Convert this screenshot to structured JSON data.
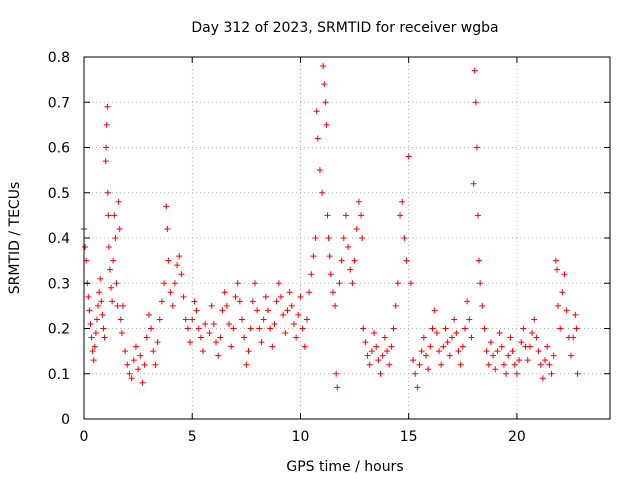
{
  "chart_data": {
    "type": "scatter",
    "title": "Day 312 of 2023, SRMTID for receiver wgba",
    "xlabel": "GPS time / hours",
    "ylabel": "SRMTID / TECUs",
    "xlim": [
      0,
      24.3
    ],
    "ylim": [
      0,
      0.8
    ],
    "xticks": [
      0,
      5,
      10,
      15,
      20
    ],
    "yticks": [
      0,
      0.1,
      0.2,
      0.3,
      0.4,
      0.5,
      0.6,
      0.7,
      0.8
    ],
    "xtick_labels": [
      "0",
      "5",
      "10",
      "15",
      "20"
    ],
    "ytick_labels": [
      "0",
      "0.1",
      "0.2",
      "0.3",
      "0.4",
      "0.5",
      "0.6",
      "0.7",
      "0.8"
    ],
    "grid": true,
    "marker": "+",
    "color": "#ff0000",
    "series": [
      {
        "name": "SRMTID",
        "points": [
          [
            0.0,
            0.42
          ],
          [
            0.05,
            0.38
          ],
          [
            0.1,
            0.35
          ],
          [
            0.15,
            0.3
          ],
          [
            0.2,
            0.27
          ],
          [
            0.25,
            0.24
          ],
          [
            0.3,
            0.21
          ],
          [
            0.35,
            0.18
          ],
          [
            0.4,
            0.15
          ],
          [
            0.45,
            0.13
          ],
          [
            0.5,
            0.16
          ],
          [
            0.55,
            0.19
          ],
          [
            0.6,
            0.22
          ],
          [
            0.65,
            0.25
          ],
          [
            0.7,
            0.28
          ],
          [
            0.75,
            0.31
          ],
          [
            0.8,
            0.26
          ],
          [
            0.85,
            0.23
          ],
          [
            0.9,
            0.2
          ],
          [
            0.95,
            0.18
          ],
          [
            1.0,
            0.57
          ],
          [
            1.02,
            0.6
          ],
          [
            1.05,
            0.65
          ],
          [
            1.08,
            0.69
          ],
          [
            1.1,
            0.5
          ],
          [
            1.12,
            0.45
          ],
          [
            1.15,
            0.38
          ],
          [
            1.2,
            0.33
          ],
          [
            1.25,
            0.29
          ],
          [
            1.3,
            0.26
          ],
          [
            1.35,
            0.35
          ],
          [
            1.4,
            0.45
          ],
          [
            1.45,
            0.4
          ],
          [
            1.5,
            0.3
          ],
          [
            1.55,
            0.25
          ],
          [
            1.6,
            0.48
          ],
          [
            1.65,
            0.42
          ],
          [
            1.7,
            0.22
          ],
          [
            1.75,
            0.19
          ],
          [
            1.8,
            0.25
          ],
          [
            1.9,
            0.15
          ],
          [
            2.0,
            0.12
          ],
          [
            2.1,
            0.1
          ],
          [
            2.2,
            0.09
          ],
          [
            2.3,
            0.13
          ],
          [
            2.4,
            0.16
          ],
          [
            2.5,
            0.11
          ],
          [
            2.6,
            0.14
          ],
          [
            2.7,
            0.08
          ],
          [
            2.8,
            0.12
          ],
          [
            2.9,
            0.18
          ],
          [
            3.0,
            0.23
          ],
          [
            3.1,
            0.2
          ],
          [
            3.2,
            0.15
          ],
          [
            3.3,
            0.12
          ],
          [
            3.4,
            0.17
          ],
          [
            3.5,
            0.22
          ],
          [
            3.6,
            0.26
          ],
          [
            3.7,
            0.3
          ],
          [
            3.8,
            0.47
          ],
          [
            3.85,
            0.42
          ],
          [
            3.9,
            0.35
          ],
          [
            4.0,
            0.28
          ],
          [
            4.1,
            0.25
          ],
          [
            4.2,
            0.3
          ],
          [
            4.3,
            0.34
          ],
          [
            4.4,
            0.36
          ],
          [
            4.5,
            0.32
          ],
          [
            4.6,
            0.27
          ],
          [
            4.7,
            0.22
          ],
          [
            4.8,
            0.2
          ],
          [
            4.9,
            0.17
          ],
          [
            5.0,
            0.22
          ],
          [
            5.1,
            0.26
          ],
          [
            5.2,
            0.24
          ],
          [
            5.3,
            0.2
          ],
          [
            5.4,
            0.18
          ],
          [
            5.5,
            0.15
          ],
          [
            5.6,
            0.21
          ],
          [
            5.8,
            0.19
          ],
          [
            5.9,
            0.25
          ],
          [
            6.0,
            0.21
          ],
          [
            6.1,
            0.17
          ],
          [
            6.2,
            0.14
          ],
          [
            6.3,
            0.18
          ],
          [
            6.4,
            0.24
          ],
          [
            6.5,
            0.28
          ],
          [
            6.6,
            0.25
          ],
          [
            6.7,
            0.21
          ],
          [
            6.8,
            0.16
          ],
          [
            6.9,
            0.2
          ],
          [
            7.0,
            0.27
          ],
          [
            7.1,
            0.3
          ],
          [
            7.2,
            0.26
          ],
          [
            7.3,
            0.22
          ],
          [
            7.4,
            0.18
          ],
          [
            7.5,
            0.12
          ],
          [
            7.6,
            0.15
          ],
          [
            7.7,
            0.2
          ],
          [
            7.8,
            0.26
          ],
          [
            7.9,
            0.3
          ],
          [
            8.0,
            0.24
          ],
          [
            8.1,
            0.2
          ],
          [
            8.2,
            0.17
          ],
          [
            8.3,
            0.22
          ],
          [
            8.4,
            0.27
          ],
          [
            8.5,
            0.24
          ],
          [
            8.6,
            0.2
          ],
          [
            8.7,
            0.16
          ],
          [
            8.8,
            0.21
          ],
          [
            8.9,
            0.26
          ],
          [
            9.0,
            0.3
          ],
          [
            9.1,
            0.27
          ],
          [
            9.2,
            0.23
          ],
          [
            9.3,
            0.19
          ],
          [
            9.4,
            0.24
          ],
          [
            9.5,
            0.28
          ],
          [
            9.6,
            0.25
          ],
          [
            9.7,
            0.21
          ],
          [
            9.8,
            0.18
          ],
          [
            9.9,
            0.23
          ],
          [
            10.0,
            0.27
          ],
          [
            10.1,
            0.2
          ],
          [
            10.2,
            0.16
          ],
          [
            10.3,
            0.22
          ],
          [
            10.4,
            0.28
          ],
          [
            10.5,
            0.32
          ],
          [
            10.6,
            0.36
          ],
          [
            10.7,
            0.4
          ],
          [
            10.75,
            0.68
          ],
          [
            10.8,
            0.62
          ],
          [
            10.9,
            0.55
          ],
          [
            11.0,
            0.5
          ],
          [
            11.05,
            0.78
          ],
          [
            11.1,
            0.74
          ],
          [
            11.15,
            0.7
          ],
          [
            11.2,
            0.65
          ],
          [
            11.25,
            0.45
          ],
          [
            11.3,
            0.4
          ],
          [
            11.35,
            0.36
          ],
          [
            11.4,
            0.32
          ],
          [
            11.5,
            0.28
          ],
          [
            11.6,
            0.25
          ],
          [
            11.65,
            0.1
          ],
          [
            11.7,
            0.07
          ],
          [
            11.8,
            0.3
          ],
          [
            11.9,
            0.35
          ],
          [
            12.0,
            0.4
          ],
          [
            12.1,
            0.45
          ],
          [
            12.2,
            0.38
          ],
          [
            12.3,
            0.33
          ],
          [
            12.4,
            0.3
          ],
          [
            12.5,
            0.35
          ],
          [
            12.6,
            0.42
          ],
          [
            12.7,
            0.48
          ],
          [
            12.8,
            0.45
          ],
          [
            12.85,
            0.4
          ],
          [
            12.9,
            0.2
          ],
          [
            13.0,
            0.17
          ],
          [
            13.1,
            0.14
          ],
          [
            13.2,
            0.12
          ],
          [
            13.3,
            0.15
          ],
          [
            13.4,
            0.19
          ],
          [
            13.5,
            0.16
          ],
          [
            13.6,
            0.13
          ],
          [
            13.7,
            0.1
          ],
          [
            13.8,
            0.14
          ],
          [
            13.9,
            0.18
          ],
          [
            14.0,
            0.15
          ],
          [
            14.1,
            0.12
          ],
          [
            14.2,
            0.16
          ],
          [
            14.3,
            0.2
          ],
          [
            14.4,
            0.25
          ],
          [
            14.5,
            0.3
          ],
          [
            14.6,
            0.45
          ],
          [
            14.7,
            0.48
          ],
          [
            14.8,
            0.4
          ],
          [
            14.9,
            0.35
          ],
          [
            15.0,
            0.58
          ],
          [
            15.1,
            0.3
          ],
          [
            15.2,
            0.13
          ],
          [
            15.3,
            0.1
          ],
          [
            15.4,
            0.07
          ],
          [
            15.5,
            0.12
          ],
          [
            15.6,
            0.15
          ],
          [
            15.7,
            0.18
          ],
          [
            15.8,
            0.14
          ],
          [
            15.9,
            0.11
          ],
          [
            16.0,
            0.16
          ],
          [
            16.1,
            0.2
          ],
          [
            16.2,
            0.24
          ],
          [
            16.3,
            0.19
          ],
          [
            16.4,
            0.15
          ],
          [
            16.5,
            0.12
          ],
          [
            16.6,
            0.16
          ],
          [
            16.7,
            0.2
          ],
          [
            16.8,
            0.17
          ],
          [
            16.9,
            0.14
          ],
          [
            17.0,
            0.18
          ],
          [
            17.1,
            0.22
          ],
          [
            17.2,
            0.19
          ],
          [
            17.3,
            0.15
          ],
          [
            17.4,
            0.12
          ],
          [
            17.5,
            0.16
          ],
          [
            17.6,
            0.2
          ],
          [
            17.7,
            0.26
          ],
          [
            17.8,
            0.22
          ],
          [
            17.9,
            0.18
          ],
          [
            18.0,
            0.52
          ],
          [
            18.05,
            0.77
          ],
          [
            18.1,
            0.7
          ],
          [
            18.15,
            0.6
          ],
          [
            18.2,
            0.45
          ],
          [
            18.25,
            0.35
          ],
          [
            18.3,
            0.3
          ],
          [
            18.4,
            0.25
          ],
          [
            18.5,
            0.2
          ],
          [
            18.6,
            0.15
          ],
          [
            18.7,
            0.12
          ],
          [
            18.8,
            0.17
          ],
          [
            18.9,
            0.14
          ],
          [
            19.0,
            0.11
          ],
          [
            19.1,
            0.15
          ],
          [
            19.2,
            0.19
          ],
          [
            19.3,
            0.16
          ],
          [
            19.4,
            0.12
          ],
          [
            19.5,
            0.1
          ],
          [
            19.6,
            0.14
          ],
          [
            19.7,
            0.18
          ],
          [
            19.8,
            0.15
          ],
          [
            19.9,
            0.12
          ],
          [
            20.0,
            0.1
          ],
          [
            20.1,
            0.13
          ],
          [
            20.2,
            0.17
          ],
          [
            20.3,
            0.2
          ],
          [
            20.4,
            0.16
          ],
          [
            20.5,
            0.13
          ],
          [
            20.6,
            0.16
          ],
          [
            20.7,
            0.19
          ],
          [
            20.8,
            0.22
          ],
          [
            20.9,
            0.18
          ],
          [
            21.0,
            0.15
          ],
          [
            21.1,
            0.12
          ],
          [
            21.2,
            0.09
          ],
          [
            21.3,
            0.13
          ],
          [
            21.4,
            0.16
          ],
          [
            21.5,
            0.12
          ],
          [
            21.6,
            0.1
          ],
          [
            21.7,
            0.14
          ],
          [
            21.8,
            0.35
          ],
          [
            21.85,
            0.33
          ],
          [
            21.9,
            0.25
          ],
          [
            22.0,
            0.2
          ],
          [
            22.1,
            0.28
          ],
          [
            22.2,
            0.32
          ],
          [
            22.3,
            0.24
          ],
          [
            22.4,
            0.18
          ],
          [
            22.5,
            0.14
          ],
          [
            22.6,
            0.18
          ],
          [
            22.7,
            0.23
          ],
          [
            22.75,
            0.2
          ],
          [
            22.8,
            0.1
          ]
        ]
      }
    ]
  }
}
